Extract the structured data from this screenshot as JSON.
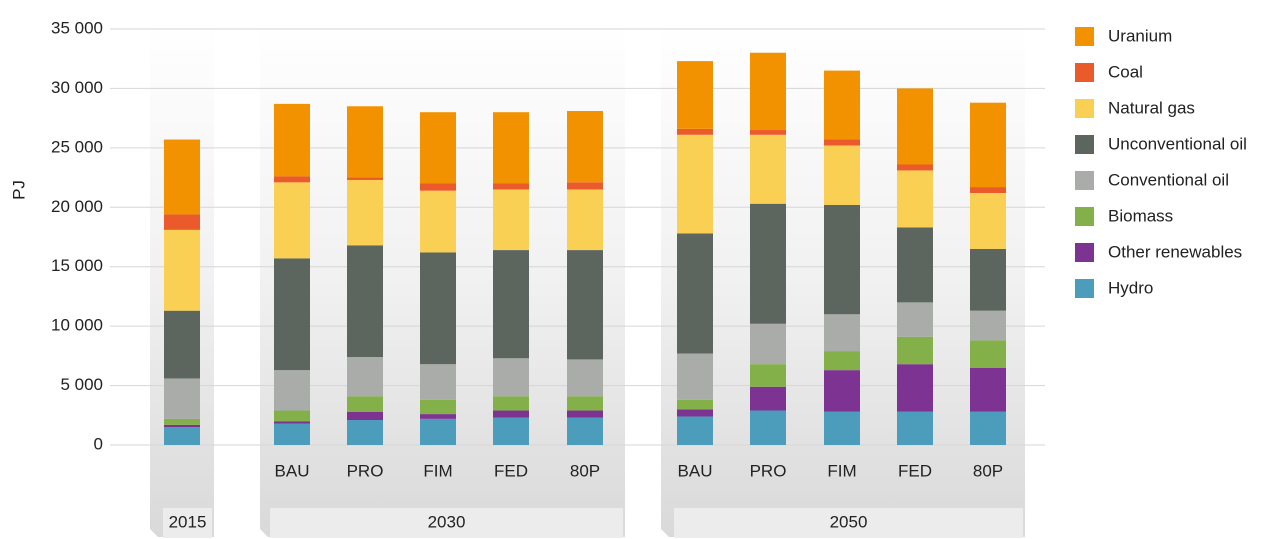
{
  "chart_data": {
    "type": "stacked_bar",
    "y_label": "PJ",
    "categories": [
      null,
      "BAU",
      "PRO",
      "FIM",
      "FED",
      "80P",
      "BAU",
      "PRO",
      "FIM",
      "FED",
      "80P"
    ],
    "groups": [
      "2015",
      "2030",
      "2050"
    ],
    "ylim": [
      0,
      35000
    ],
    "yticks": [
      0,
      {
        "value": 5000,
        "label": "5 000"
      },
      {
        "value": 10000,
        "label": "10 000"
      },
      {
        "value": 15000,
        "label": "15 000"
      },
      {
        "value": 20000,
        "label": "20 000"
      },
      {
        "value": 25000,
        "label": "25 000"
      },
      {
        "value": 30000,
        "label": "30 000"
      },
      {
        "value": 35000,
        "label": "35 000"
      }
    ],
    "grid": true,
    "legend": "right",
    "series": [
      {
        "name": "Hydro",
        "color": "#4b9dbb",
        "values": [
          1500,
          1800,
          2100,
          2200,
          2300,
          2300,
          2400,
          2900,
          2800,
          2800,
          2800
        ]
      },
      {
        "name": "Other renewables",
        "color": "#7d3391",
        "values": [
          200,
          200,
          700,
          400,
          600,
          600,
          600,
          2000,
          3500,
          4000,
          3700
        ]
      },
      {
        "name": "Biomass",
        "color": "#84b04a",
        "values": [
          500,
          900,
          1300,
          1200,
          1200,
          1200,
          800,
          1900,
          1600,
          2300,
          2300
        ]
      },
      {
        "name": "Conventional oil",
        "color": "#a9aca8",
        "values": [
          3400,
          3400,
          3300,
          3000,
          3200,
          3100,
          3900,
          3400,
          3100,
          2900,
          2500
        ]
      },
      {
        "name": "Unconventional oil",
        "color": "#5c665e",
        "values": [
          5700,
          9400,
          9400,
          9400,
          9100,
          9200,
          10100,
          10100,
          9200,
          6300,
          5200
        ]
      },
      {
        "name": "Natural gas",
        "color": "#f9d054",
        "values": [
          6800,
          6400,
          5500,
          5200,
          5100,
          5100,
          8300,
          5800,
          5000,
          4800,
          4700
        ]
      },
      {
        "name": "Coal",
        "color": "#ea5a2a",
        "values": [
          1300,
          500,
          200,
          600,
          500,
          600,
          500,
          400,
          500,
          500,
          500
        ]
      },
      {
        "name": "Uranium",
        "color": "#f39200",
        "values": [
          6300,
          6100,
          6000,
          6000,
          6000,
          6000,
          5700,
          6500,
          5800,
          6400,
          7100
        ]
      }
    ]
  }
}
